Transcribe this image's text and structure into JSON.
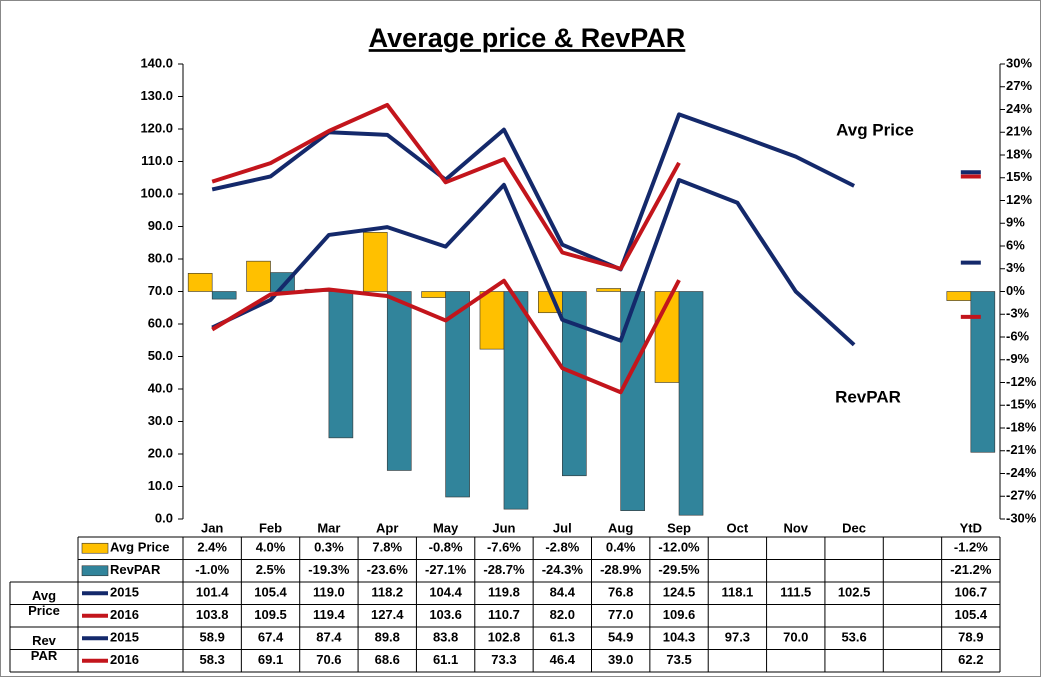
{
  "chart_data": {
    "type": "combo",
    "title": "Average price & RevPAR",
    "annotations": [
      "Avg Price",
      "RevPAR"
    ],
    "categories": [
      "Jan",
      "Feb",
      "Mar",
      "Apr",
      "May",
      "Jun",
      "Jul",
      "Aug",
      "Sep",
      "Oct",
      "Nov",
      "Dec",
      null,
      "YtD"
    ],
    "ylim": [
      0,
      140
    ],
    "yticks": [
      {
        "value": 0,
        "label": "0.0"
      },
      {
        "value": 10,
        "label": "10.0"
      },
      {
        "value": 20,
        "label": "20.0"
      },
      {
        "value": 30,
        "label": "30.0"
      },
      {
        "value": 40,
        "label": "40.0"
      },
      {
        "value": 50,
        "label": "50.0"
      },
      {
        "value": 60,
        "label": "60.0"
      },
      {
        "value": 70,
        "label": "70.0"
      },
      {
        "value": 80,
        "label": "80.0"
      },
      {
        "value": 90,
        "label": "90.0"
      },
      {
        "value": 100,
        "label": "100.0"
      },
      {
        "value": 110,
        "label": "110.0"
      },
      {
        "value": 120,
        "label": "120.0"
      },
      {
        "value": 130,
        "label": "130.0"
      },
      {
        "value": 140,
        "label": "140.0"
      }
    ],
    "y2lim": [
      -30,
      30
    ],
    "y2ticks": [
      {
        "value": -30,
        "label": "-30%"
      },
      {
        "value": -27,
        "label": "-27%"
      },
      {
        "value": -24,
        "label": "-24%"
      },
      {
        "value": -21,
        "label": "-21%"
      },
      {
        "value": -18,
        "label": "-18%"
      },
      {
        "value": -15,
        "label": "-15%"
      },
      {
        "value": -12,
        "label": "-12%"
      },
      {
        "value": -9,
        "label": "-9%"
      },
      {
        "value": -6,
        "label": "-6%"
      },
      {
        "value": -3,
        "label": "-3%"
      },
      {
        "value": 0,
        "label": "0%"
      },
      {
        "value": 3,
        "label": "3%"
      },
      {
        "value": 6,
        "label": "6%"
      },
      {
        "value": 9,
        "label": "9%"
      },
      {
        "value": 12,
        "label": "12%"
      },
      {
        "value": 15,
        "label": "15%"
      },
      {
        "value": 18,
        "label": "18%"
      },
      {
        "value": 21,
        "label": "21%"
      },
      {
        "value": 24,
        "label": "24%"
      },
      {
        "value": 27,
        "label": "27%"
      },
      {
        "value": 30,
        "label": "30%"
      }
    ],
    "groups": [
      "Avg Price",
      "Rev PAR"
    ],
    "series": [
      {
        "name": "Avg Price",
        "kind": "bar",
        "axis": "y2",
        "color": "#FFC000",
        "values": [
          2.4,
          4.0,
          0.3,
          7.8,
          -0.8,
          -7.6,
          -2.8,
          0.4,
          -12.0,
          null,
          null,
          null,
          null,
          -1.2
        ],
        "value_labels": [
          "2.4%",
          "4.0%",
          "0.3%",
          "7.8%",
          "-0.8%",
          "-7.6%",
          "-2.8%",
          "0.4%",
          "-12.0%",
          null,
          null,
          null,
          null,
          "-1.2%"
        ]
      },
      {
        "name": "RevPAR",
        "kind": "bar",
        "axis": "y2",
        "color": "#31849B",
        "values": [
          -1.0,
          2.5,
          -19.3,
          -23.6,
          -27.1,
          -28.7,
          -24.3,
          -28.9,
          -29.5,
          null,
          null,
          null,
          null,
          -21.2
        ],
        "value_labels": [
          "-1.0%",
          "2.5%",
          "-19.3%",
          "-23.6%",
          "-27.1%",
          "-28.7%",
          "-24.3%",
          "-28.9%",
          "-29.5%",
          null,
          null,
          null,
          null,
          "-21.2%"
        ]
      },
      {
        "name": "2015",
        "kind": "line",
        "group": 0,
        "color": "#14296B",
        "values": [
          101.4,
          105.4,
          119.0,
          118.2,
          104.4,
          119.8,
          84.4,
          76.8,
          124.5,
          118.1,
          111.5,
          102.5,
          null,
          106.7
        ],
        "value_labels": [
          "101.4",
          "105.4",
          "119.0",
          "118.2",
          "104.4",
          "119.8",
          "84.4",
          "76.8",
          "124.5",
          "118.1",
          "111.5",
          "102.5",
          null,
          "106.7"
        ]
      },
      {
        "name": "2016",
        "kind": "line",
        "group": 0,
        "color": "#C3151C",
        "values": [
          103.8,
          109.5,
          119.4,
          127.4,
          103.6,
          110.7,
          82.0,
          77.0,
          109.6,
          null,
          null,
          null,
          null,
          105.4
        ],
        "value_labels": [
          "103.8",
          "109.5",
          "119.4",
          "127.4",
          "103.6",
          "110.7",
          "82.0",
          "77.0",
          "109.6",
          null,
          null,
          null,
          null,
          "105.4"
        ]
      },
      {
        "name": "2015",
        "kind": "line",
        "group": 1,
        "color": "#14296B",
        "values": [
          58.9,
          67.4,
          87.4,
          89.8,
          83.8,
          102.8,
          61.3,
          54.9,
          104.3,
          97.3,
          70.0,
          53.6,
          null,
          78.9
        ],
        "value_labels": [
          "58.9",
          "67.4",
          "87.4",
          "89.8",
          "83.8",
          "102.8",
          "61.3",
          "54.9",
          "104.3",
          "97.3",
          "70.0",
          "53.6",
          null,
          "78.9"
        ]
      },
      {
        "name": "2016",
        "kind": "line",
        "group": 1,
        "color": "#C3151C",
        "values": [
          58.3,
          69.1,
          70.6,
          68.6,
          61.1,
          73.3,
          46.4,
          39.0,
          73.5,
          null,
          null,
          null,
          null,
          62.2
        ],
        "value_labels": [
          "58.3",
          "69.1",
          "70.6",
          "68.6",
          "61.1",
          "73.3",
          "46.4",
          "39.0",
          "73.5",
          null,
          null,
          null,
          null,
          "62.2"
        ]
      }
    ]
  }
}
